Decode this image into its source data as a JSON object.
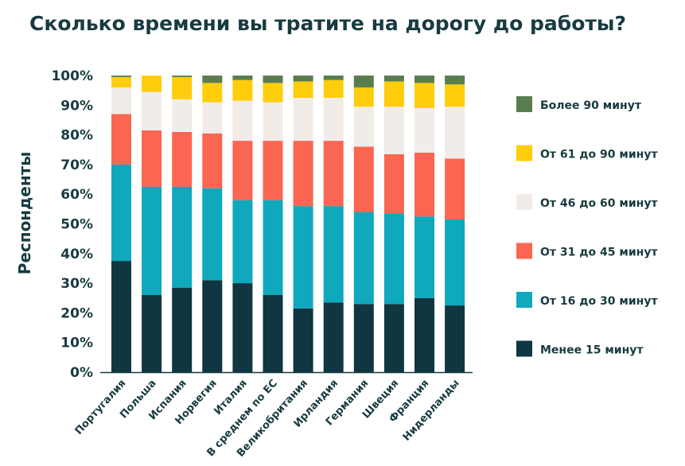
{
  "chart_data": {
    "type": "bar",
    "stacked": true,
    "title": "Сколько времени вы тратите на дорогу до работы?",
    "ylabel": "Респонденты",
    "xlabel": "",
    "ylim": [
      0,
      100
    ],
    "yticks": [
      "0%",
      "10%",
      "20%",
      "30%",
      "40%",
      "50%",
      "60%",
      "70%",
      "80%",
      "90%",
      "100%"
    ],
    "legend_position": "right",
    "categories": [
      "Португалия",
      "Польша",
      "Испания",
      "Норвегия",
      "Италия",
      "В среднем по ЕС",
      "Великобритания",
      "Ирландия",
      "Германия",
      "Швеция",
      "Франция",
      "Нидерланды"
    ],
    "series": [
      {
        "name": "Менее 15 минут",
        "color": "#0f3641",
        "values": [
          37.5,
          26,
          28.5,
          31,
          30,
          26,
          21.5,
          23.5,
          23,
          23,
          25,
          22.5
        ]
      },
      {
        "name": "От 16 до 30 минут",
        "color": "#0fa8bd",
        "values": [
          32.5,
          36.5,
          34,
          31,
          28,
          32,
          34.5,
          32.5,
          31,
          30.5,
          27.5,
          29
        ]
      },
      {
        "name": "От 31 до 45 минут",
        "color": "#fa6651",
        "values": [
          17,
          19,
          18.5,
          18.5,
          20,
          20,
          22,
          22,
          22,
          20,
          21.5,
          20.5
        ]
      },
      {
        "name": "От 46 до 60 минут",
        "color": "#f1ece8",
        "values": [
          9,
          13,
          11,
          10.5,
          13.5,
          13,
          14.5,
          14.5,
          13.5,
          16,
          15,
          17.5
        ]
      },
      {
        "name": "От 61 до 90 минут",
        "color": "#fecd0b",
        "values": [
          3.5,
          5.5,
          7.5,
          6.5,
          7,
          6.5,
          5.5,
          6,
          6.5,
          8.5,
          8.5,
          7.5
        ]
      },
      {
        "name": "Более 90 минут",
        "color": "#597d4f",
        "values": [
          0.5,
          0,
          0.5,
          2.5,
          1.5,
          2.5,
          2,
          1.5,
          4,
          2,
          2.5,
          3
        ]
      }
    ]
  }
}
